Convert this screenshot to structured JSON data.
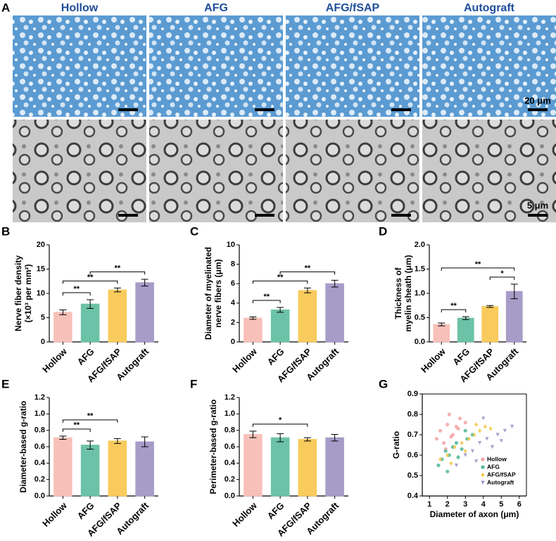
{
  "micrographs": {
    "panel": "A",
    "groups": [
      "Hollow",
      "AFG",
      "AFG/fSAP",
      "Autograft"
    ],
    "scale_bars": [
      "20 μm",
      "5 μm"
    ]
  },
  "chart_data": [
    {
      "type": "bar",
      "panel": "B",
      "ylabel": [
        "Nerve fiber density",
        "(×10³ per mm²)"
      ],
      "categories": [
        "Hollow",
        "AFG",
        "AFG/fSAP",
        "Autograft"
      ],
      "values": [
        6.1,
        7.8,
        10.7,
        12.2
      ],
      "errors": [
        0.5,
        0.9,
        0.4,
        0.7
      ],
      "colors": [
        "#f7c1b9",
        "#6cc2a7",
        "#f8cb5c",
        "#a79cc8"
      ],
      "ylim": [
        0,
        20
      ],
      "yticks": [
        0,
        5,
        10,
        15,
        20
      ],
      "significance": [
        {
          "between": [
            "Hollow",
            "AFG"
          ],
          "label": "**"
        },
        {
          "between": [
            "Hollow",
            "AFG/fSAP"
          ],
          "label": "**"
        },
        {
          "between": [
            "AFG",
            "Autograft"
          ],
          "label": "**"
        }
      ]
    },
    {
      "type": "bar",
      "panel": "C",
      "ylabel": [
        "Diameter of myelinated",
        "nerve fibers (μm)"
      ],
      "categories": [
        "Hollow",
        "AFG",
        "AFG/fSAP",
        "Autograft"
      ],
      "values": [
        2.45,
        3.3,
        5.3,
        6.0
      ],
      "errors": [
        0.12,
        0.25,
        0.25,
        0.35
      ],
      "colors": [
        "#f7c1b9",
        "#6cc2a7",
        "#f8cb5c",
        "#a79cc8"
      ],
      "ylim": [
        0,
        10
      ],
      "yticks": [
        0,
        2,
        4,
        6,
        8,
        10
      ],
      "significance": [
        {
          "between": [
            "Hollow",
            "AFG"
          ],
          "label": "**"
        },
        {
          "between": [
            "Hollow",
            "AFG/fSAP"
          ],
          "label": "**"
        },
        {
          "between": [
            "AFG",
            "Autograft"
          ],
          "label": "**"
        }
      ]
    },
    {
      "type": "bar",
      "panel": "D",
      "ylabel": [
        "Thickness of",
        "myelin sheath (μm)"
      ],
      "categories": [
        "Hollow",
        "AFG",
        "AFG/fSAP",
        "Autograft"
      ],
      "values": [
        0.36,
        0.49,
        0.73,
        1.04
      ],
      "errors": [
        0.03,
        0.03,
        0.02,
        0.15
      ],
      "colors": [
        "#f7c1b9",
        "#6cc2a7",
        "#f8cb5c",
        "#a79cc8"
      ],
      "ylim": [
        0,
        2
      ],
      "yticks": [
        {
          "value": 0,
          "label": "0.0"
        },
        0.5,
        {
          "value": 1,
          "label": "1.0"
        },
        1.5,
        {
          "value": 2,
          "label": "2.0"
        }
      ],
      "significance": [
        {
          "between": [
            "Hollow",
            "AFG"
          ],
          "label": "**"
        },
        {
          "between": [
            "AFG/fSAP",
            "Autograft"
          ],
          "label": "*"
        },
        {
          "between": [
            "Hollow",
            "Autograft"
          ],
          "label": "**"
        }
      ]
    },
    {
      "type": "bar",
      "panel": "E",
      "ylabel": [
        "Diameter-based g-ratio"
      ],
      "categories": [
        "Hollow",
        "AFG",
        "AFG/fSAP",
        "Autograft"
      ],
      "values": [
        0.71,
        0.62,
        0.67,
        0.66
      ],
      "errors": [
        0.02,
        0.05,
        0.03,
        0.06
      ],
      "colors": [
        "#f7c1b9",
        "#6cc2a7",
        "#f8cb5c",
        "#a79cc8"
      ],
      "ylim": [
        0,
        1.2
      ],
      "yticks": [
        {
          "value": 0,
          "label": "0.0"
        },
        0.2,
        0.4,
        0.6,
        0.8,
        {
          "value": 1,
          "label": "1.0"
        },
        1.2
      ],
      "significance": [
        {
          "between": [
            "Hollow",
            "AFG"
          ],
          "label": "**"
        },
        {
          "between": [
            "Hollow",
            "AFG/fSAP"
          ],
          "label": "**"
        }
      ]
    },
    {
      "type": "bar",
      "panel": "F",
      "ylabel": [
        "Perimeter-based g-ratio"
      ],
      "categories": [
        "Hollow",
        "AFG",
        "AFG/fSAP",
        "Autograft"
      ],
      "values": [
        0.75,
        0.71,
        0.69,
        0.71
      ],
      "errors": [
        0.04,
        0.05,
        0.02,
        0.04
      ],
      "colors": [
        "#f7c1b9",
        "#6cc2a7",
        "#f8cb5c",
        "#a79cc8"
      ],
      "ylim": [
        0,
        1.2
      ],
      "yticks": [
        {
          "value": 0,
          "label": "0.0"
        },
        0.2,
        0.4,
        0.6,
        0.8,
        {
          "value": 1,
          "label": "1.0"
        },
        1.2
      ],
      "significance": [
        {
          "between": [
            "Hollow",
            "AFG/fSAP"
          ],
          "label": "*"
        }
      ]
    },
    {
      "type": "scatter",
      "panel": "G",
      "ylabel": [
        "G-ratio"
      ],
      "xlabel": "Diameter of axon (μm)",
      "xlim": [
        0.6,
        6.4
      ],
      "xticks": [
        1,
        2,
        3,
        4,
        5,
        6
      ],
      "ylim": [
        0.4,
        0.9
      ],
      "yticks": [
        0.4,
        0.5,
        0.6,
        0.7,
        0.8,
        0.9
      ],
      "legend": "bottom-right",
      "series": [
        {
          "name": "Hollow",
          "color": "#f4a3a3",
          "marker": "circle",
          "x": [
            1.4,
            1.6,
            1.8,
            2.0,
            2.1,
            2.3,
            2.5,
            2.7,
            3.0,
            1.9,
            2.2,
            2.6
          ],
          "values": [
            0.68,
            0.72,
            0.66,
            0.75,
            0.8,
            0.7,
            0.74,
            0.78,
            0.76,
            0.63,
            0.69,
            0.73
          ]
        },
        {
          "name": "AFG",
          "color": "#4fb79a",
          "marker": "circle",
          "x": [
            1.5,
            1.7,
            1.9,
            2.1,
            2.3,
            2.5,
            2.8,
            3.1,
            3.4,
            2.0,
            2.6,
            3.0
          ],
          "values": [
            0.55,
            0.58,
            0.62,
            0.6,
            0.64,
            0.66,
            0.63,
            0.68,
            0.7,
            0.52,
            0.59,
            0.72
          ]
        },
        {
          "name": "AFG/fSAP",
          "color": "#f5c542",
          "marker": "diamond",
          "x": [
            1.6,
            2.0,
            2.4,
            2.8,
            3.2,
            3.5,
            3.8,
            4.1,
            2.2,
            3.0,
            3.6,
            4.4
          ],
          "values": [
            0.58,
            0.6,
            0.64,
            0.66,
            0.68,
            0.7,
            0.72,
            0.74,
            0.56,
            0.62,
            0.75,
            0.73
          ]
        },
        {
          "name": "Autograft",
          "color": "#9a8fc4",
          "marker": "triangle",
          "x": [
            2.5,
            3.0,
            3.4,
            3.8,
            4.2,
            4.5,
            4.8,
            5.2,
            5.6,
            3.6,
            4.0,
            5.0
          ],
          "values": [
            0.55,
            0.6,
            0.62,
            0.66,
            0.68,
            0.64,
            0.7,
            0.72,
            0.74,
            0.57,
            0.78,
            0.67
          ]
        }
      ]
    }
  ]
}
